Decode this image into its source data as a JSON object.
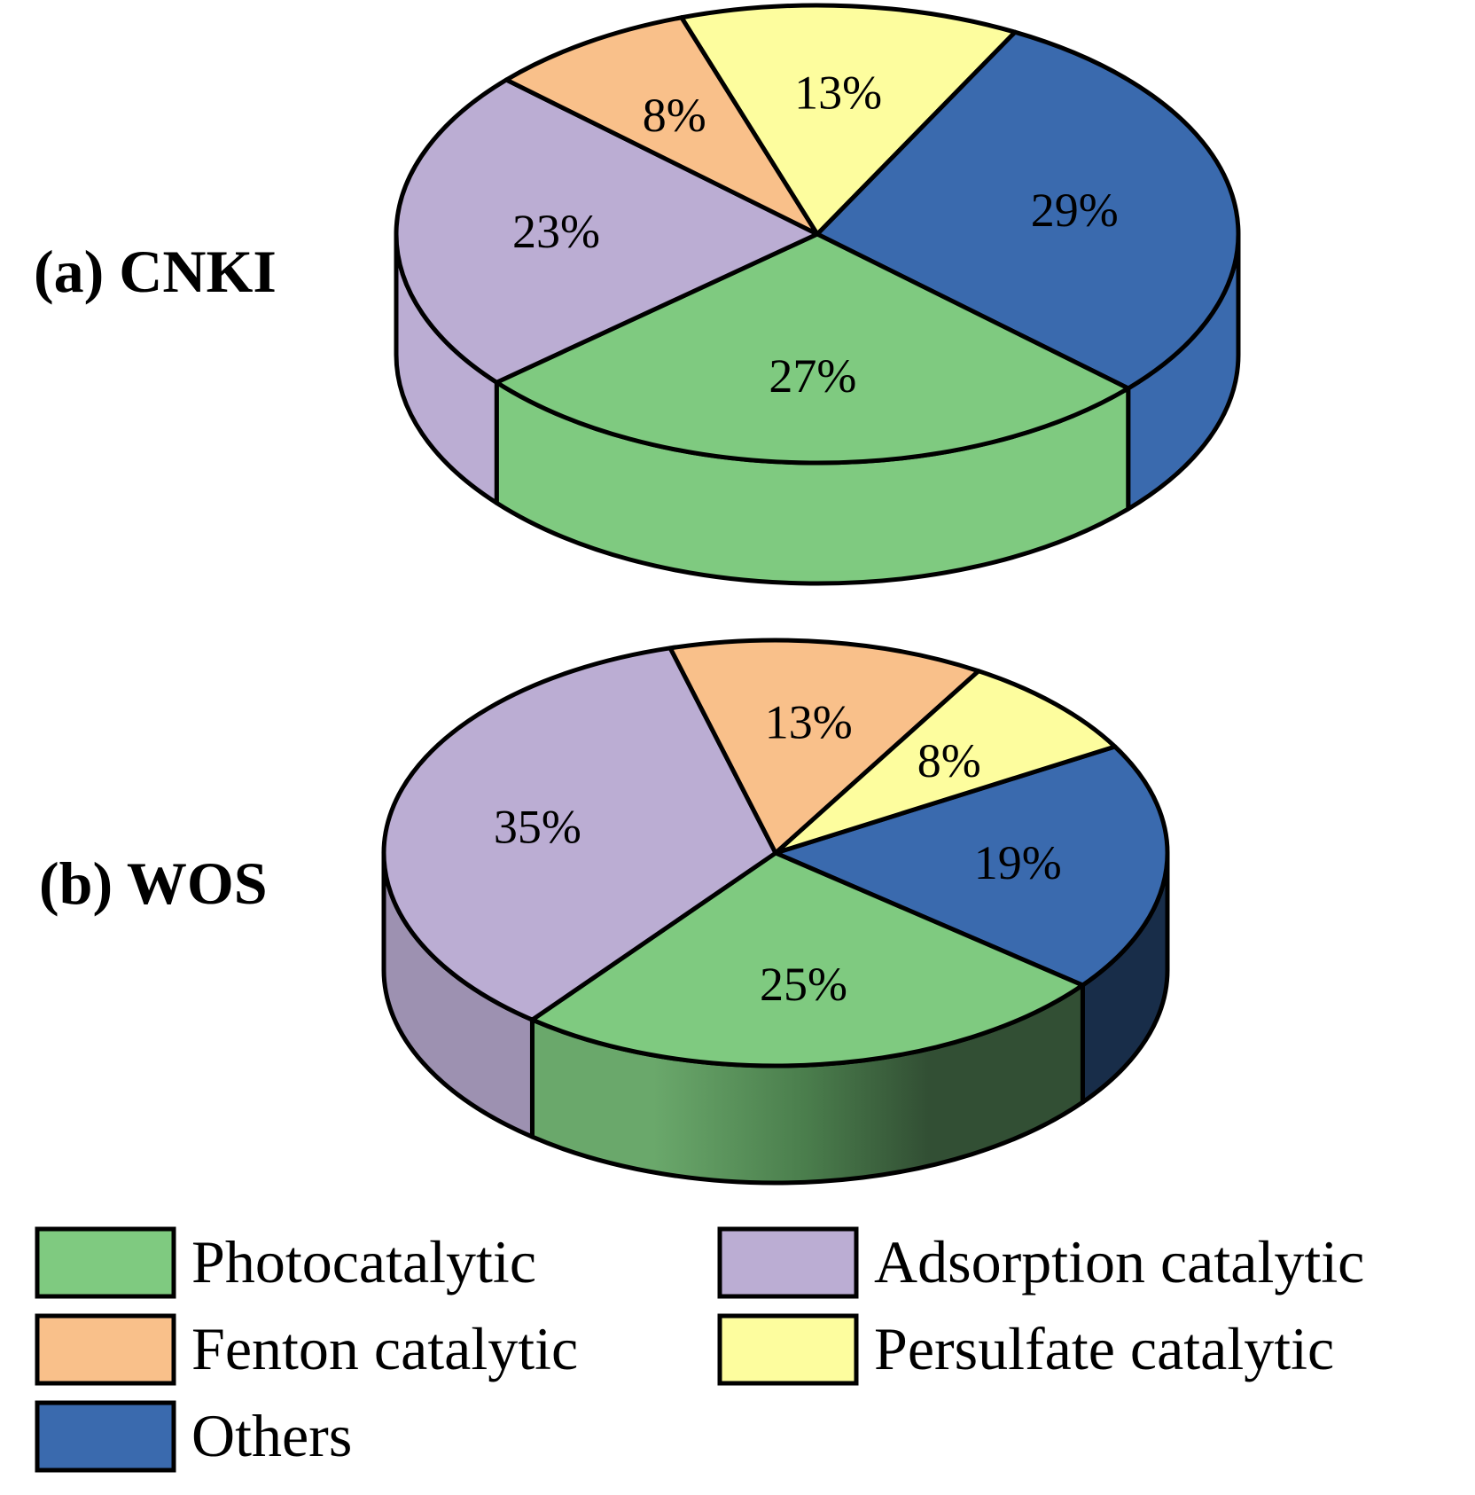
{
  "chart_data": [
    {
      "type": "pie",
      "title": "(a) CNKI",
      "slices": [
        {
          "key": "others",
          "label": "Others",
          "value": 29,
          "text": "29%"
        },
        {
          "key": "photo",
          "label": "Photocatalytic",
          "value": 27,
          "text": "27%"
        },
        {
          "key": "adsorption",
          "label": "Adsorption catalytic",
          "value": 23,
          "text": "23%"
        },
        {
          "key": "fenton",
          "label": "Fenton catalytic",
          "value": 8,
          "text": "8%"
        },
        {
          "key": "persulfate",
          "label": "Persulfate catalytic",
          "value": 13,
          "text": "13%"
        }
      ]
    },
    {
      "type": "pie",
      "title": "(b) WOS",
      "slices": [
        {
          "key": "others",
          "label": "Others",
          "value": 19,
          "text": "19%"
        },
        {
          "key": "photo",
          "label": "Photocatalytic",
          "value": 25,
          "text": "25%"
        },
        {
          "key": "adsorption",
          "label": "Adsorption catalytic",
          "value": 35,
          "text": "35%"
        },
        {
          "key": "fenton",
          "label": "Fenton catalytic",
          "value": 13,
          "text": "13%"
        },
        {
          "key": "persulfate",
          "label": "Persulfate catalytic",
          "value": 8,
          "text": "8%"
        }
      ]
    }
  ],
  "legend": [
    {
      "key": "photo",
      "label": "Photocatalytic"
    },
    {
      "key": "adsorption",
      "label": "Adsorption catalytic"
    },
    {
      "key": "fenton",
      "label": "Fenton catalytic"
    },
    {
      "key": "persulfate",
      "label": "Persulfate catalytic"
    },
    {
      "key": "others",
      "label": "Others"
    }
  ],
  "colors": {
    "photo": "#7fca80",
    "adsorption": "#bbadd3",
    "fenton": "#f9c08a",
    "persulfate": "#fdfd9e",
    "others": "#3a6aae"
  }
}
